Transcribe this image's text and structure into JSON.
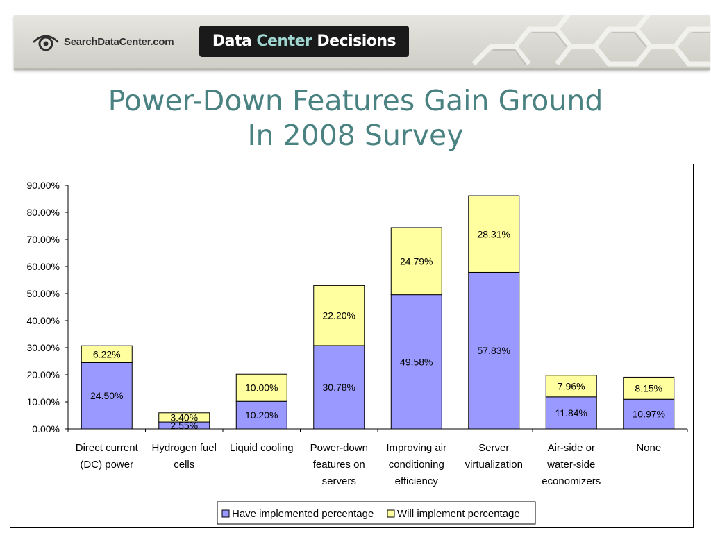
{
  "header": {
    "logo_text": "SearchDataCenter.com",
    "brand_part1": "Data",
    "brand_part2": "Center",
    "brand_part3": "Decisions"
  },
  "slide": {
    "title_line1": "Power-Down Features Gain Ground",
    "title_line2": "In 2008 Survey"
  },
  "colors": {
    "title": "#4a8282",
    "implemented": "#9999ff",
    "will_implement": "#ffffa0",
    "brand_accent": "#9fd6cf"
  },
  "chart_data": {
    "type": "bar",
    "stacked": true,
    "categories": [
      [
        "Direct current",
        "(DC) power"
      ],
      [
        "Hydrogen fuel",
        "cells"
      ],
      [
        "Liquid cooling"
      ],
      [
        "Power-down",
        "features on",
        "servers"
      ],
      [
        "Improving air",
        "conditioning",
        "efficiency"
      ],
      [
        "Server",
        "virtualization"
      ],
      [
        "Air-side or",
        "water-side",
        "economizers"
      ],
      [
        "None"
      ]
    ],
    "series": [
      {
        "name": "Have implemented percentage",
        "color": "#9999ff",
        "values": [
          24.5,
          2.55,
          10.2,
          30.78,
          49.58,
          57.83,
          11.84,
          10.97
        ],
        "labels": [
          "24.50%",
          "2.55%",
          "10.20%",
          "30.78%",
          "49.58%",
          "57.83%",
          "11.84%",
          "10.97%"
        ]
      },
      {
        "name": "Will implement percentage",
        "color": "#ffffa0",
        "values": [
          6.22,
          3.4,
          10.0,
          22.2,
          24.79,
          28.31,
          7.96,
          8.15
        ],
        "labels": [
          "6.22%",
          "3.40%",
          "10.00%",
          "22.20%",
          "24.79%",
          "28.31%",
          "7.96%",
          "8.15%"
        ]
      }
    ],
    "ylim": [
      0,
      90
    ],
    "yticks": [
      "0.00%",
      "10.00%",
      "20.00%",
      "30.00%",
      "40.00%",
      "50.00%",
      "60.00%",
      "70.00%",
      "80.00%",
      "90.00%"
    ],
    "xlabel": "",
    "ylabel": "",
    "grid": false,
    "legend": "bottom"
  }
}
